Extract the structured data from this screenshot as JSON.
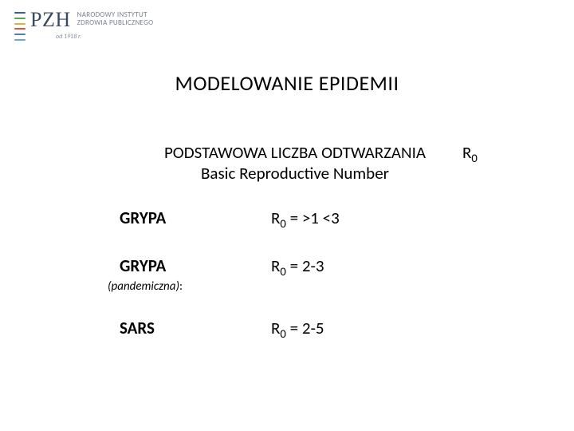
{
  "logo": {
    "main": "PZH",
    "sub_line1": "NARODOWY INSTYTUT",
    "sub_line2": "ZDROWIA PUBLICZNEGO",
    "since": "od 1918 r.",
    "mark_colors": [
      "#3b5aa3",
      "#5aa84e",
      "#e0b23a",
      "#d65a3a",
      "#4a7fb8",
      "#6aa6d6"
    ]
  },
  "title": "MODELOWANIE  EPIDEMII",
  "subtitle": {
    "line1": "PODSTAWOWA   LICZBA   ODTWARZANIA",
    "line2": "Basic Reproductive Number",
    "rsym": "R",
    "rsub": "0"
  },
  "rows": [
    {
      "name": "GRYPA",
      "r": "R",
      "sub": "0",
      "eq": " =  >1 <3",
      "note": ""
    },
    {
      "name": "GRYPA",
      "r": "R",
      "sub": "0",
      "eq": " =  2-3",
      "note": "(pandemiczna):"
    },
    {
      "name": "SARS",
      "r": "R",
      "sub": "0",
      "eq": " =  2-5",
      "note": ""
    }
  ],
  "style": {
    "background": "#ffffff",
    "text_color": "#000000",
    "logo_main_color": "#3b4a63",
    "logo_sub_color": "#7a828f",
    "title_fontsize": 26,
    "body_fontsize": 21,
    "note_fontsize": 15
  }
}
